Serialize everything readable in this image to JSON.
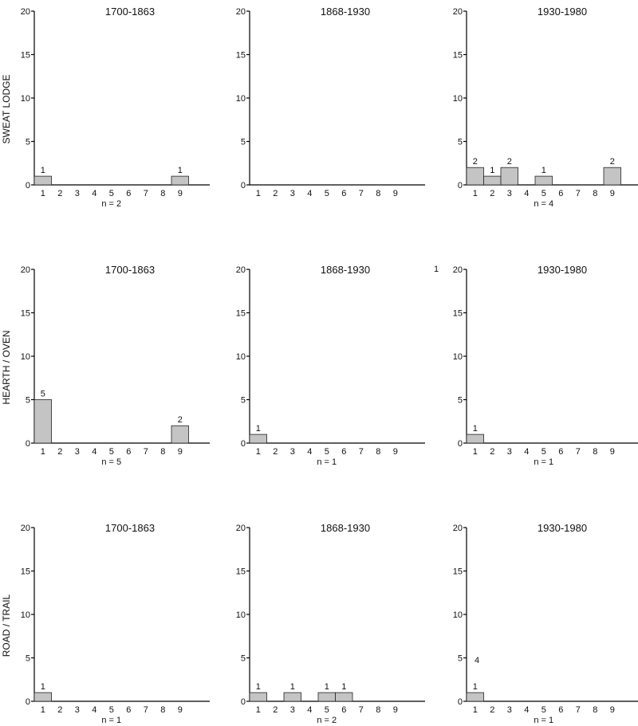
{
  "colors": {
    "bar_fill": "#c4c4c4",
    "bar_stroke": "#222222",
    "axis": "#000000",
    "background": "#ffffff"
  },
  "rows": [
    {
      "label": "SWEAT LODGE"
    },
    {
      "label": "HEARTH / OVEN"
    },
    {
      "label": "ROAD / TRAIL"
    }
  ],
  "chart_data": [
    {
      "type": "bar",
      "row": 0,
      "col": 0,
      "title": "1700-1863",
      "categories": [
        "1",
        "2",
        "3",
        "4",
        "5",
        "6",
        "7",
        "8",
        "9"
      ],
      "values": [
        1,
        0,
        0,
        0,
        0,
        0,
        0,
        0,
        1
      ],
      "bar_labels": [
        "1",
        "",
        "",
        "",
        "",
        "",
        "",
        "",
        "1"
      ],
      "ylim": [
        0,
        20
      ],
      "yticks": [
        "0",
        "5",
        "10",
        "15",
        "20"
      ],
      "n_label": "n = 2",
      "xlabel": "",
      "ylabel": ""
    },
    {
      "type": "bar",
      "row": 0,
      "col": 1,
      "title": "1868-1930",
      "categories": [
        "1",
        "2",
        "3",
        "4",
        "5",
        "6",
        "7",
        "8",
        "9"
      ],
      "values": [
        0,
        0,
        0,
        0,
        0,
        0,
        0,
        0,
        0
      ],
      "bar_labels": [
        "",
        "",
        "",
        "",
        "",
        "",
        "",
        "",
        ""
      ],
      "ylim": [
        0,
        20
      ],
      "yticks": [
        "0",
        "5",
        "10",
        "15",
        "20"
      ],
      "n_label": "",
      "xlabel": "",
      "ylabel": ""
    },
    {
      "type": "bar",
      "row": 0,
      "col": 2,
      "title": "1930-1980",
      "categories": [
        "1",
        "2",
        "3",
        "4",
        "5",
        "6",
        "7",
        "8",
        "9"
      ],
      "values": [
        2,
        1,
        2,
        0,
        1,
        0,
        0,
        0,
        2
      ],
      "bar_labels": [
        "2",
        "1",
        "2",
        "",
        "1",
        "",
        "",
        "",
        "2"
      ],
      "ylim": [
        0,
        20
      ],
      "yticks": [
        "0",
        "5",
        "10",
        "15",
        "20"
      ],
      "n_label": "n = 4",
      "xlabel": "",
      "ylabel": ""
    },
    {
      "type": "bar",
      "row": 1,
      "col": 0,
      "title": "1700-1863",
      "categories": [
        "1",
        "2",
        "3",
        "4",
        "5",
        "6",
        "7",
        "8",
        "9"
      ],
      "values": [
        5,
        0,
        0,
        0,
        0,
        0,
        0,
        0,
        2
      ],
      "bar_labels": [
        "5",
        "",
        "",
        "",
        "",
        "",
        "",
        "",
        "2"
      ],
      "ylim": [
        0,
        20
      ],
      "yticks": [
        "0",
        "5",
        "10",
        "15",
        "20"
      ],
      "n_label": "n = 5",
      "xlabel": "",
      "ylabel": ""
    },
    {
      "type": "bar",
      "row": 1,
      "col": 1,
      "title": "1868-1930",
      "categories": [
        "1",
        "2",
        "3",
        "4",
        "5",
        "6",
        "7",
        "8",
        "9"
      ],
      "values": [
        1,
        0,
        0,
        0,
        0,
        0,
        0,
        0,
        0
      ],
      "bar_labels": [
        "1",
        "",
        "",
        "",
        "",
        "",
        "",
        "",
        ""
      ],
      "ylim": [
        0,
        20
      ],
      "yticks": [
        "0",
        "5",
        "10",
        "15",
        "20"
      ],
      "n_label": "n = 1",
      "xlabel": "",
      "ylabel": ""
    },
    {
      "type": "bar",
      "row": 1,
      "col": 2,
      "title": "1930-1980",
      "categories": [
        "1",
        "2",
        "3",
        "4",
        "5",
        "6",
        "7",
        "8",
        "9"
      ],
      "values": [
        1,
        0,
        0,
        0,
        0,
        0,
        0,
        0,
        0
      ],
      "bar_labels": [
        "1",
        "",
        "",
        "",
        "",
        "",
        "",
        "",
        ""
      ],
      "ylim": [
        0,
        20
      ],
      "yticks": [
        "0",
        "5",
        "10",
        "15",
        "20"
      ],
      "n_label": "n = 1",
      "xlabel": "",
      "ylabel": ""
    },
    {
      "type": "bar",
      "row": 2,
      "col": 0,
      "title": "1700-1863",
      "categories": [
        "1",
        "2",
        "3",
        "4",
        "5",
        "6",
        "7",
        "8",
        "9"
      ],
      "values": [
        1,
        0,
        0,
        0,
        0,
        0,
        0,
        0,
        0
      ],
      "bar_labels": [
        "1",
        "",
        "",
        "",
        "",
        "",
        "",
        "",
        ""
      ],
      "ylim": [
        0,
        20
      ],
      "yticks": [
        "0",
        "5",
        "10",
        "15",
        "20"
      ],
      "n_label": "n = 1",
      "xlabel": "",
      "ylabel": ""
    },
    {
      "type": "bar",
      "row": 2,
      "col": 1,
      "title": "1868-1930",
      "categories": [
        "1",
        "2",
        "3",
        "4",
        "5",
        "6",
        "7",
        "8",
        "9"
      ],
      "values": [
        1,
        0,
        1,
        0,
        1,
        1,
        0,
        0,
        0
      ],
      "bar_labels": [
        "1",
        "",
        "1",
        "",
        "1",
        "1",
        "",
        "",
        ""
      ],
      "ylim": [
        0,
        20
      ],
      "yticks": [
        "0",
        "5",
        "10",
        "15",
        "20"
      ],
      "n_label": "n = 2",
      "xlabel": "",
      "ylabel": ""
    },
    {
      "type": "bar",
      "row": 2,
      "col": 2,
      "title": "1930-1980",
      "categories": [
        "1",
        "2",
        "3",
        "4",
        "5",
        "6",
        "7",
        "8",
        "9"
      ],
      "values": [
        1,
        0,
        0,
        0,
        0,
        0,
        0,
        0,
        0
      ],
      "bar_labels": [
        "1",
        "",
        "",
        "",
        "",
        "",
        "",
        "",
        ""
      ],
      "ylim": [
        0,
        20
      ],
      "yticks": [
        "0",
        "5",
        "10",
        "15",
        "20"
      ],
      "n_label": "n = 1",
      "xlabel": "",
      "ylabel": ""
    }
  ],
  "stray_labels": [
    {
      "text": "1",
      "panel": 1
    },
    {
      "text": "4",
      "panel": 8
    }
  ]
}
